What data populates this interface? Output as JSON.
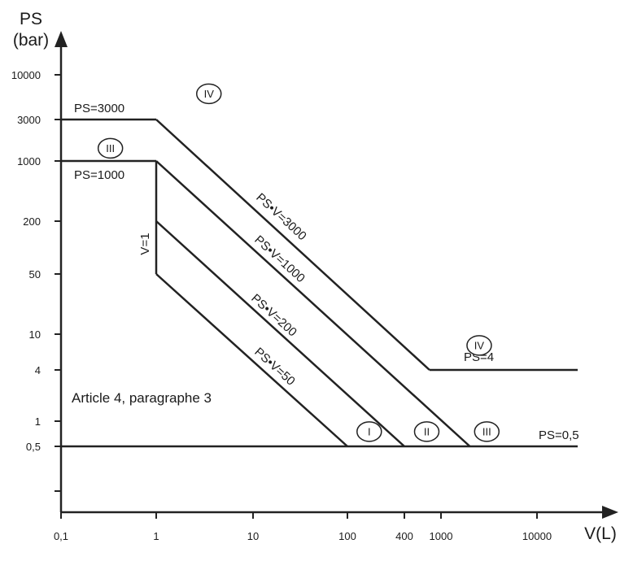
{
  "chart_data": {
    "type": "line",
    "x_scale": "log",
    "y_scale": "log",
    "xlabel": "V(L)",
    "ylabel_line1": "PS",
    "ylabel_line2": "(bar)",
    "x_ticks": [
      {
        "value": 0.1,
        "label": "0,1"
      },
      {
        "value": 1,
        "label": "1"
      },
      {
        "value": 10,
        "label": "10"
      },
      {
        "value": 100,
        "label": "100"
      },
      {
        "value": 400,
        "label": "400"
      },
      {
        "value": 1000,
        "label": "1000"
      },
      {
        "value": 10000,
        "label": "10000"
      }
    ],
    "y_ticks": [
      {
        "value": 0.5,
        "label": "0,5"
      },
      {
        "value": 1,
        "label": "1"
      },
      {
        "value": 4,
        "label": "4"
      },
      {
        "value": 10,
        "label": "10"
      },
      {
        "value": 50,
        "label": "50"
      },
      {
        "value": 200,
        "label": "200"
      },
      {
        "value": 1000,
        "label": "1000"
      },
      {
        "value": 3000,
        "label": "3000"
      },
      {
        "value": 10000,
        "label": "10000"
      }
    ],
    "series": [
      {
        "id": "ps-3000",
        "label": "PS=3000",
        "points": [
          [
            0.1,
            3000
          ],
          [
            1,
            3000
          ]
        ]
      },
      {
        "id": "ps-1000",
        "label": "PS=1000",
        "points": [
          [
            0.1,
            1000
          ],
          [
            1,
            1000
          ]
        ]
      },
      {
        "id": "v-1",
        "label": "V=1",
        "points": [
          [
            1,
            1000
          ],
          [
            1,
            50
          ]
        ]
      },
      {
        "id": "psv-3000",
        "label": "PS•V=3000",
        "points": [
          [
            1,
            3000
          ],
          [
            750,
            4
          ]
        ]
      },
      {
        "id": "psv-1000",
        "label": "PS•V=1000",
        "points": [
          [
            1,
            1000
          ],
          [
            2000,
            0.5
          ]
        ]
      },
      {
        "id": "psv-200",
        "label": "PS•V=200",
        "points": [
          [
            1,
            200
          ],
          [
            400,
            0.5
          ]
        ]
      },
      {
        "id": "psv-50",
        "label": "PS•V=50",
        "points": [
          [
            1,
            50
          ],
          [
            100,
            0.5
          ]
        ]
      },
      {
        "id": "ps-4",
        "label": "PS=4",
        "points": [
          [
            750,
            4
          ],
          [
            30000,
            4
          ]
        ]
      },
      {
        "id": "ps-0-5",
        "label": "PS=0,5",
        "points": [
          [
            0.1,
            0.5
          ],
          [
            30000,
            0.5
          ]
        ]
      }
    ],
    "categories": [
      {
        "label": "IV",
        "x": 3.5,
        "y": 6000
      },
      {
        "label": "III",
        "x": 0.33,
        "y": 1400
      },
      {
        "label": "IV",
        "x": 2500,
        "y": 7.5
      },
      {
        "label": "I",
        "x": 170,
        "y": 0.75
      },
      {
        "label": "II",
        "x": 700,
        "y": 0.75
      },
      {
        "label": "III",
        "x": 3000,
        "y": 0.75
      }
    ],
    "annotation": "Article 4, paragraphe 3",
    "grid": false,
    "legend": "none"
  }
}
